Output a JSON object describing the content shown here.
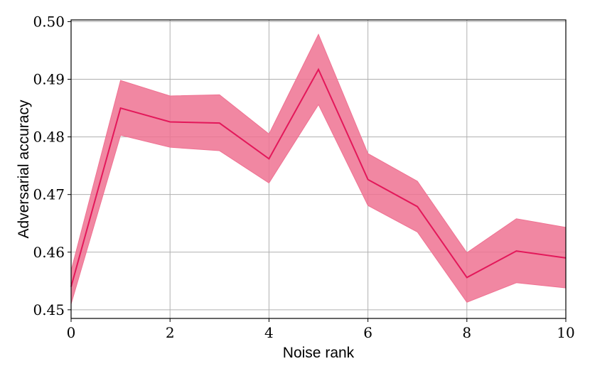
{
  "chart_data": {
    "type": "line",
    "xlabel": "Noise rank",
    "ylabel": "Adversarial accuracy",
    "xlim": [
      0,
      10
    ],
    "ylim": [
      0.4485,
      0.5003
    ],
    "xticks": [
      0,
      2,
      4,
      6,
      8,
      10
    ],
    "xtick_labels": [
      "0",
      "2",
      "4",
      "6",
      "8",
      "10"
    ],
    "yticks": [
      0.45,
      0.46,
      0.47,
      0.48,
      0.49,
      0.5
    ],
    "ytick_labels": [
      "0.45",
      "0.46",
      "0.47",
      "0.48",
      "0.49",
      "0.50"
    ],
    "grid": true,
    "series": [
      {
        "x": [
          0,
          1,
          2,
          3,
          4,
          5,
          6,
          7,
          8,
          9,
          10
        ],
        "y": [
          0.454,
          0.485,
          0.4826,
          0.4824,
          0.4762,
          0.4917,
          0.4726,
          0.4679,
          0.4556,
          0.4602,
          0.459
        ],
        "lower": [
          0.451,
          0.4803,
          0.4782,
          0.4776,
          0.472,
          0.4856,
          0.4681,
          0.4635,
          0.4513,
          0.4547,
          0.4538
        ],
        "upper": [
          0.4568,
          0.4898,
          0.4871,
          0.4873,
          0.4805,
          0.4978,
          0.4771,
          0.4723,
          0.4599,
          0.4658,
          0.4643
        ],
        "line_color": "#e3185a",
        "band_color": "#ef7292"
      }
    ]
  }
}
